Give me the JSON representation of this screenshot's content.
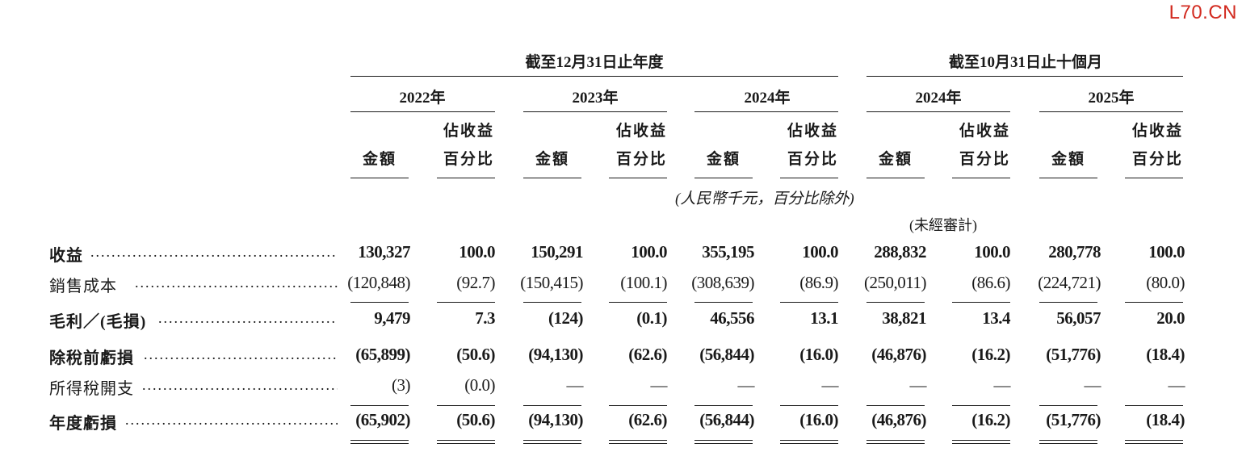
{
  "watermark": "L70.CN",
  "header": {
    "group1": "截至12月31日止年度",
    "group2": "截至10月31日止十個月",
    "years": [
      "2022年",
      "2023年",
      "2024年",
      "2024年",
      "2025年"
    ],
    "col_amount": "金額",
    "col_pct_line1": "佔收益",
    "col_pct_line2": "百分比",
    "unit_note": "(人民幣千元，百分比除外)",
    "unaudited_note": "(未經審計)"
  },
  "rows": [
    {
      "label": "收益",
      "bold": true,
      "values": [
        "130,327",
        "100.0",
        "150,291",
        "100.0",
        "355,195",
        "100.0",
        "288,832",
        "100.0",
        "280,778",
        "100.0"
      ]
    },
    {
      "label": "銷售成本",
      "bold": false,
      "values": [
        "(120,848)",
        "(92.7)",
        "(150,415)",
        "(100.1)",
        "(308,639)",
        "(86.9)",
        "(250,011)",
        "(86.6)",
        "(224,721)",
        "(80.0)"
      ]
    },
    {
      "label": "毛利／(毛損)",
      "bold": true,
      "values": [
        "9,479",
        "7.3",
        "(124)",
        "(0.1)",
        "46,556",
        "13.1",
        "38,821",
        "13.4",
        "56,057",
        "20.0"
      ]
    },
    {
      "label": "除稅前虧損",
      "bold": true,
      "values": [
        "(65,899)",
        "(50.6)",
        "(94,130)",
        "(62.6)",
        "(56,844)",
        "(16.0)",
        "(46,876)",
        "(16.2)",
        "(51,776)",
        "(18.4)"
      ]
    },
    {
      "label": "所得稅開支",
      "bold": false,
      "values": [
        "(3)",
        "(0.0)",
        "—",
        "—",
        "—",
        "—",
        "—",
        "—",
        "—",
        "—"
      ]
    },
    {
      "label": "年度虧損",
      "bold": true,
      "values": [
        "(65,902)",
        "(50.6)",
        "(94,130)",
        "(62.6)",
        "(56,844)",
        "(16.0)",
        "(46,876)",
        "(16.2)",
        "(51,776)",
        "(18.4)"
      ]
    }
  ]
}
